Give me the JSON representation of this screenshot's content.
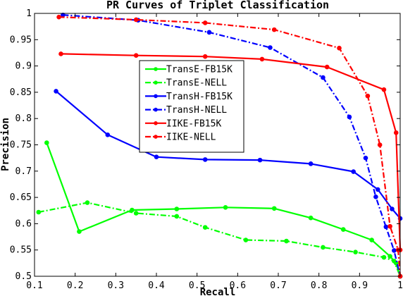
{
  "chart_data": {
    "type": "line",
    "title": "PR Curves of Triplet Classification",
    "xlabel": "Recall",
    "ylabel": "Precision",
    "xlim": [
      0.1,
      1.0
    ],
    "ylim": [
      0.5,
      1.0
    ],
    "xticks": [
      "0.1",
      "0.2",
      "0.3",
      "0.4",
      "0.5",
      "0.6",
      "0.7",
      "0.8",
      "0.9",
      "1"
    ],
    "yticks": [
      "0.5",
      "0.55",
      "0.6",
      "0.65",
      "0.7",
      "0.75",
      "0.8",
      "0.85",
      "0.9",
      "0.95",
      "1"
    ],
    "grid": false,
    "legend_position": "center-left",
    "series": [
      {
        "name": "TransE-FB15K",
        "color": "#00ff00",
        "dash": "solid",
        "x": [
          0.13,
          0.21,
          0.34,
          0.45,
          0.57,
          0.69,
          0.78,
          0.86,
          0.93,
          0.975,
          0.99,
          1.0
        ],
        "y": [
          0.754,
          0.585,
          0.626,
          0.628,
          0.631,
          0.629,
          0.611,
          0.589,
          0.569,
          0.538,
          0.525,
          0.5
        ]
      },
      {
        "name": "TransE-NELL",
        "color": "#00ff00",
        "dash": "dashdot",
        "x": [
          0.11,
          0.23,
          0.35,
          0.45,
          0.52,
          0.62,
          0.72,
          0.81,
          0.89,
          0.96,
          0.985,
          1.0
        ],
        "y": [
          0.622,
          0.64,
          0.62,
          0.614,
          0.593,
          0.569,
          0.567,
          0.555,
          0.546,
          0.536,
          0.529,
          0.5
        ]
      },
      {
        "name": "TransH-FB15K",
        "color": "#0000ff",
        "dash": "solid",
        "x": [
          0.153,
          0.28,
          0.4,
          0.52,
          0.655,
          0.78,
          0.885,
          0.945,
          0.98,
          1.0
        ],
        "y": [
          0.852,
          0.769,
          0.727,
          0.722,
          0.721,
          0.714,
          0.699,
          0.665,
          0.628,
          0.61
        ]
      },
      {
        "name": "TransH-NELL",
        "color": "#0000ff",
        "dash": "dashdot",
        "x": [
          0.17,
          0.355,
          0.53,
          0.68,
          0.81,
          0.875,
          0.915,
          0.94,
          0.965,
          0.985,
          1.0
        ],
        "y": [
          0.997,
          0.987,
          0.964,
          0.935,
          0.878,
          0.803,
          0.725,
          0.651,
          0.594,
          0.549,
          0.5
        ]
      },
      {
        "name": "IIKE-FB15K",
        "color": "#ff0000",
        "dash": "solid",
        "x": [
          0.165,
          0.35,
          0.52,
          0.66,
          0.82,
          0.96,
          0.99,
          1.0
        ],
        "y": [
          0.923,
          0.92,
          0.918,
          0.913,
          0.898,
          0.855,
          0.773,
          0.55
        ]
      },
      {
        "name": "IIKE-NELL",
        "color": "#ff0000",
        "dash": "dashdot",
        "x": [
          0.16,
          0.35,
          0.52,
          0.69,
          0.85,
          0.92,
          0.95,
          0.975,
          0.995,
          1.0
        ],
        "y": [
          0.993,
          0.988,
          0.982,
          0.969,
          0.934,
          0.843,
          0.75,
          0.595,
          0.55,
          0.5
        ]
      }
    ]
  }
}
